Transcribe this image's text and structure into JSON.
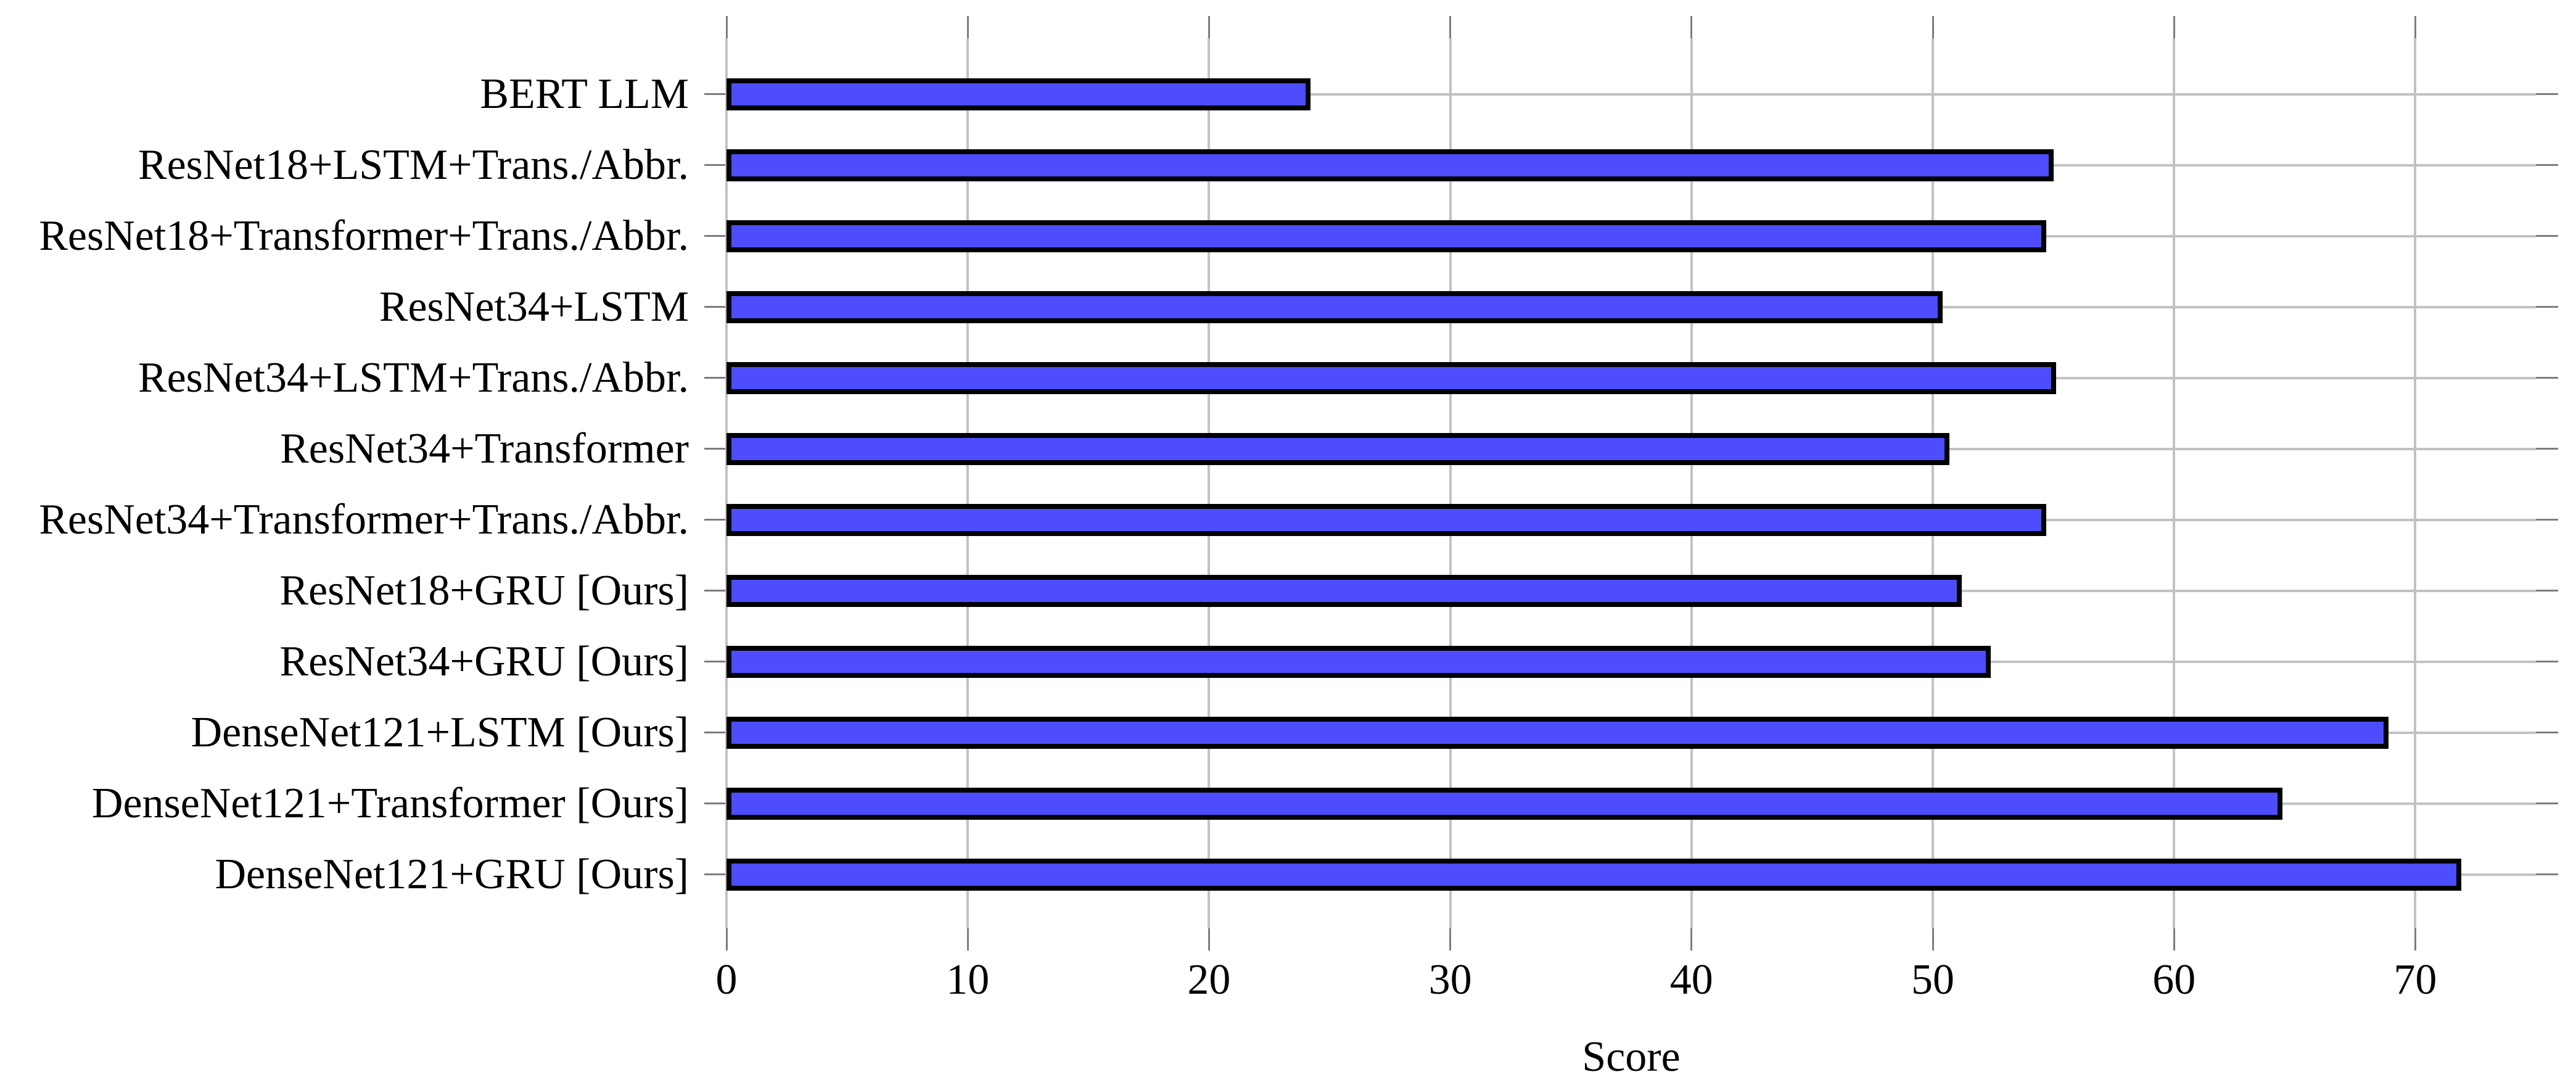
{
  "chart_data": {
    "type": "bar",
    "orientation": "horizontal",
    "title": "",
    "xlabel": "Score",
    "ylabel": "",
    "categories": [
      "BERT LLM",
      "ResNet18+LSTM+Trans./Abbr.",
      "ResNet18+Transformer+Trans./Abbr.",
      "ResNet34+LSTM",
      "ResNet34+LSTM+Trans./Abbr.",
      "ResNet34+Transformer",
      "ResNet34+Transformer+Trans./Abbr.",
      "ResNet18+GRU [Ours]",
      "ResNet34+GRU [Ours]",
      "DenseNet121+LSTM [Ours]",
      "DenseNet121+Transformer [Ours]",
      "DenseNet121+GRU [Ours]"
    ],
    "values": [
      24.2,
      55.0,
      54.7,
      50.4,
      55.1,
      50.7,
      54.7,
      51.2,
      52.4,
      68.9,
      64.5,
      71.9
    ],
    "xlim": [
      0,
      75
    ],
    "xticks": [
      0,
      10,
      20,
      30,
      40,
      50,
      60,
      70
    ],
    "grid": true,
    "legend_position": "none",
    "colors": {
      "bar_fill": "#4d4dfd",
      "bar_border": "#000000",
      "grid": "#c2c2c2",
      "tick": "#7d7d7d",
      "text": "#000000",
      "background": "#ffffff"
    }
  }
}
